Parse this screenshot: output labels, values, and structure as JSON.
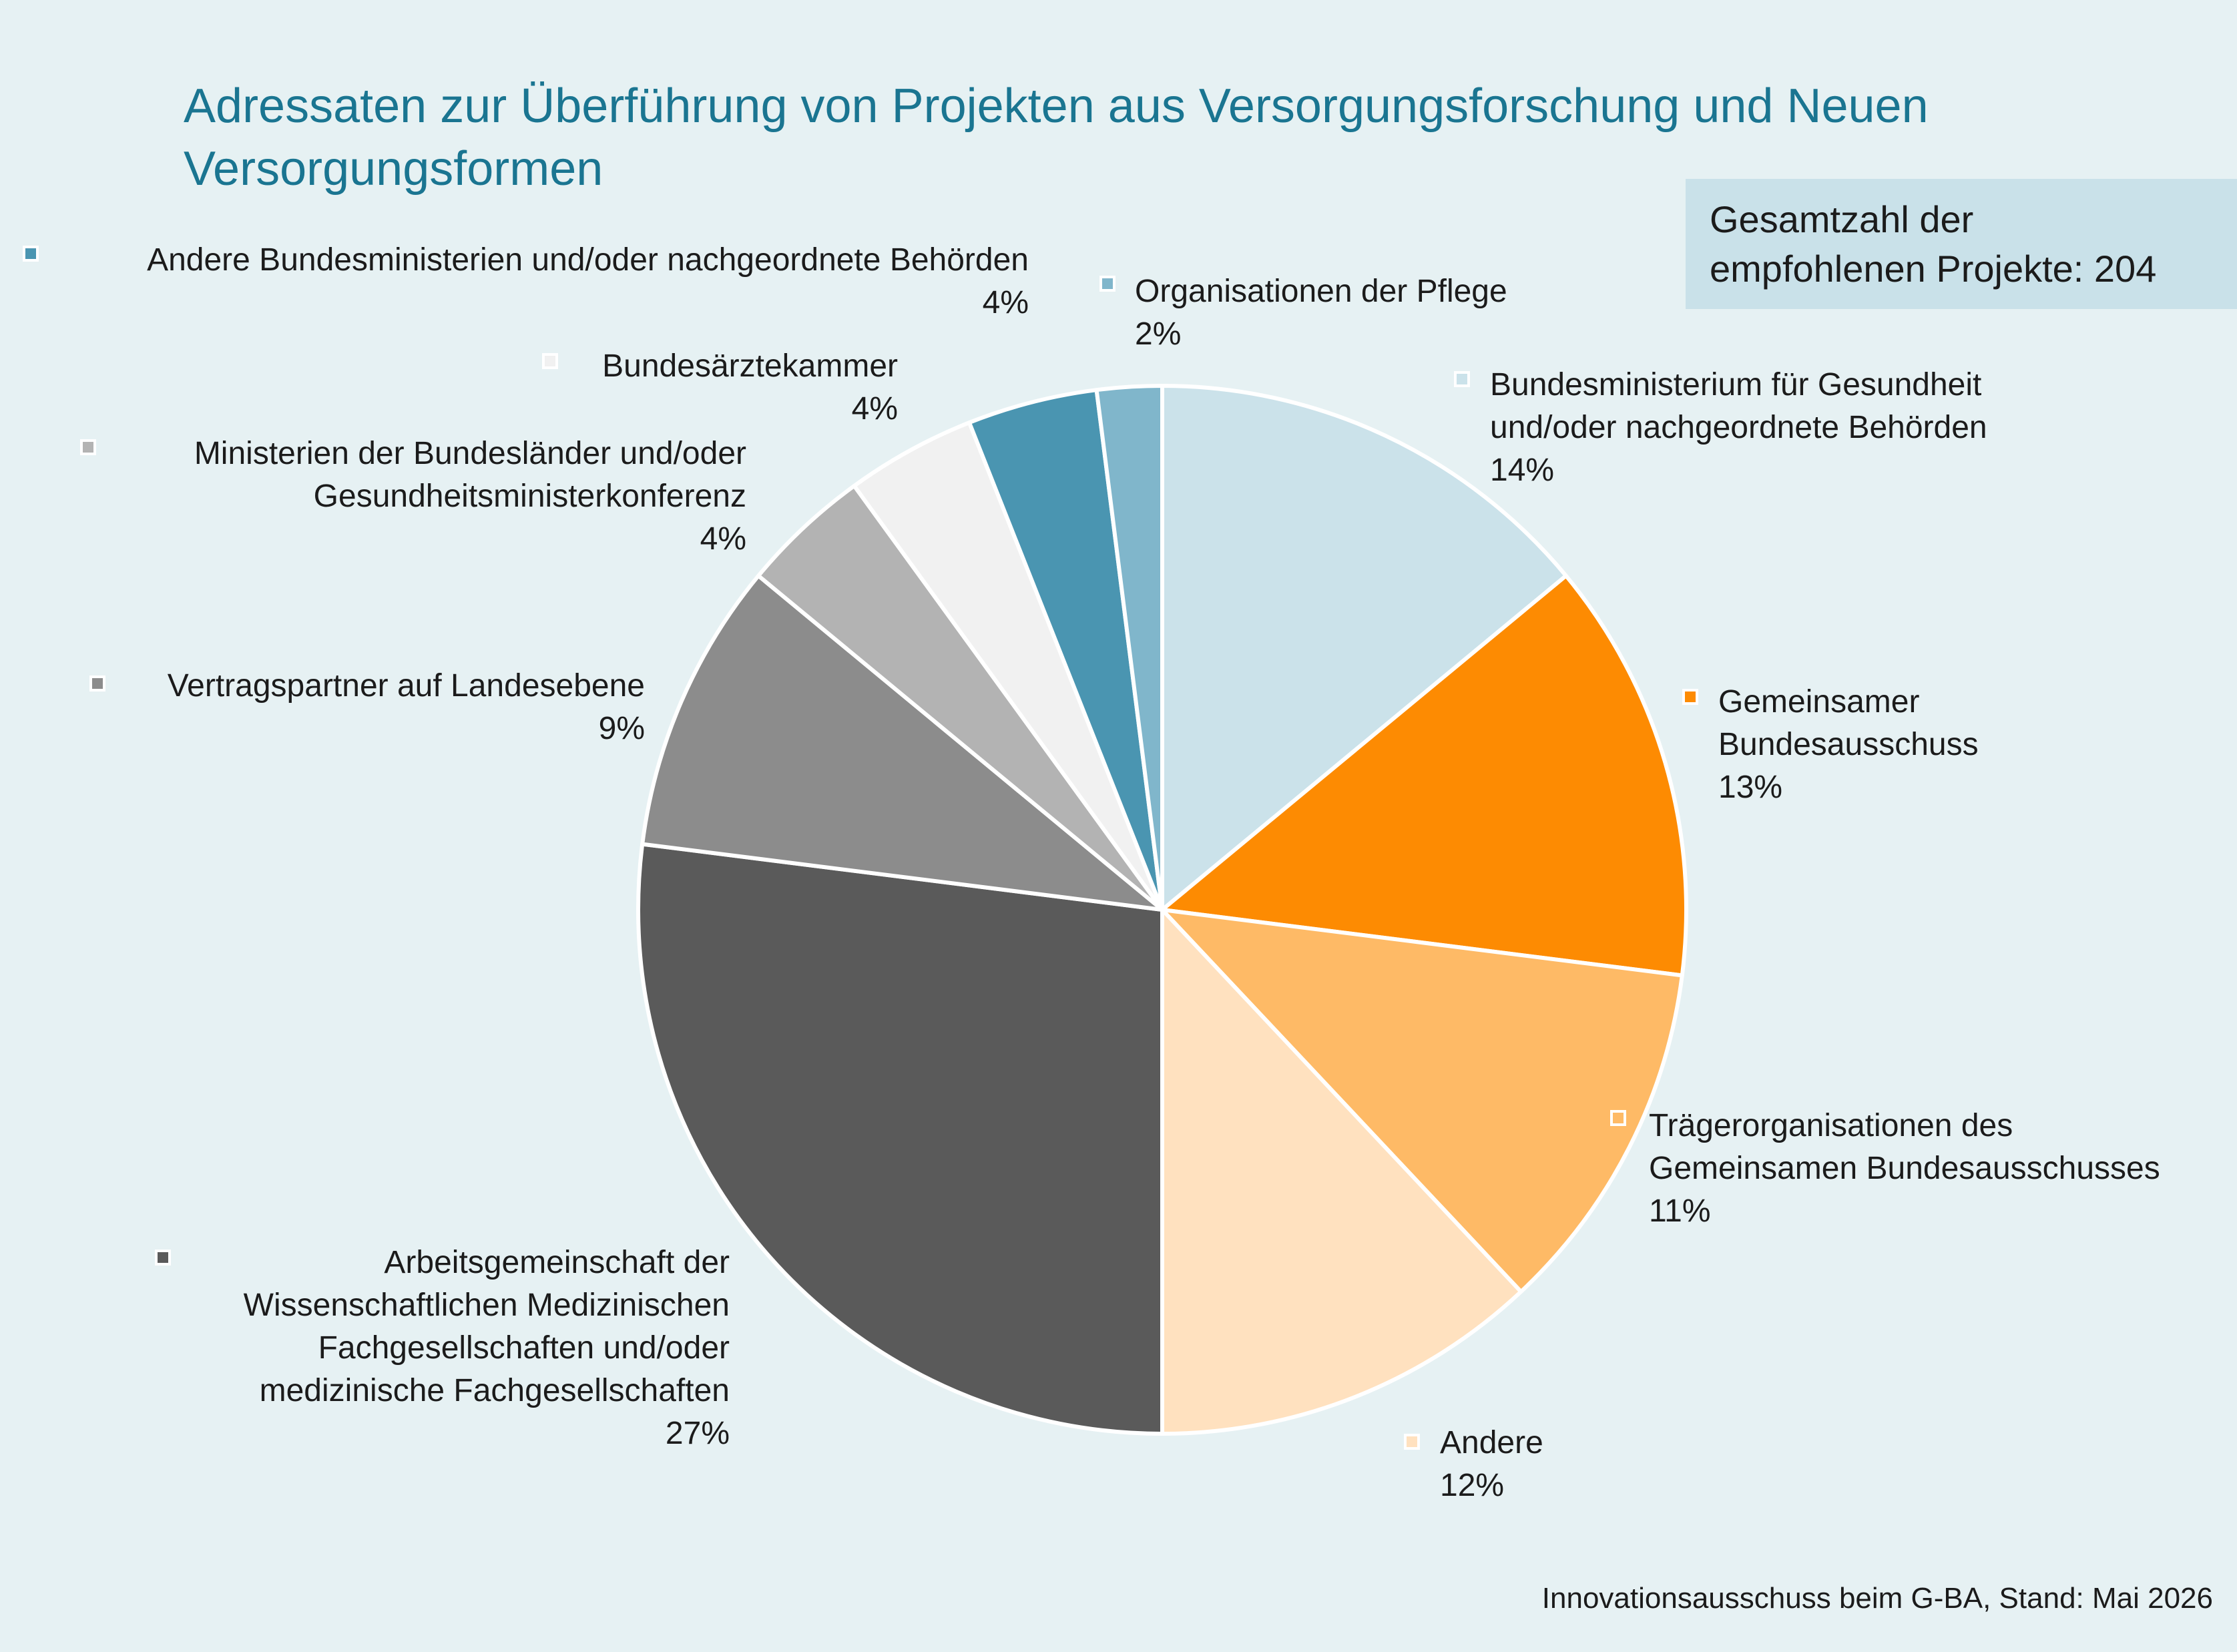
{
  "title": "Adressaten zur Überführung von Projekten aus Versorgungsforschung und Neuen Versorgungsformen",
  "total_box": {
    "line1": "Gesamtzahl der",
    "line2": "empfohlenen Projekte: 204"
  },
  "source": "Innovationsausschuss beim G-BA, Stand: Mai 2026",
  "chart_data": {
    "type": "pie",
    "title": "Adressaten zur Überführung von Projekten aus Versorgungsforschung und Neuen Versorgungsformen",
    "total_label": "Gesamtzahl der empfohlenen Projekte: 204",
    "start_angle": "12 o'clock",
    "direction": "clockwise",
    "slices": [
      {
        "name": "Bundesministerium für Gesundheit und/oder nachgeordnete Behörden",
        "label_lines": [
          "Bundesministerium für Gesundheit",
          "und/oder nachgeordnete Behörden"
        ],
        "value": 14,
        "percent_label": "14%",
        "color": "#cbe2ea"
      },
      {
        "name": "Gemeinsamer Bundesausschuss",
        "label_lines": [
          "Gemeinsamer",
          "Bundesausschuss"
        ],
        "value": 13,
        "percent_label": "13%",
        "color": "#fd8b02"
      },
      {
        "name": "Trägerorganisationen des Gemeinsamen Bundesausschusses",
        "label_lines": [
          "Trägerorganisationen des",
          "Gemeinsamen Bundesausschusses"
        ],
        "value": 11,
        "percent_label": "11%",
        "color": "#feba66"
      },
      {
        "name": "Andere",
        "label_lines": [
          "Andere"
        ],
        "value": 12,
        "percent_label": "12%",
        "color": "#ffe1bf"
      },
      {
        "name": "Arbeitsgemeinschaft der Wissenschaftlichen Medizinischen Fachgesellschaften und/oder medizinische Fachgesellschaften",
        "label_lines": [
          "Arbeitsgemeinschaft der",
          "Wissenschaftlichen Medizinischen",
          "Fachgesellschaften und/oder",
          "medizinische Fachgesellschaften"
        ],
        "value": 27,
        "percent_label": "27%",
        "color": "#5a5a5a"
      },
      {
        "name": "Vertragspartner auf Landesebene",
        "label_lines": [
          "Vertragspartner auf Landesebene"
        ],
        "value": 9,
        "percent_label": "9%",
        "color": "#8c8c8c"
      },
      {
        "name": "Ministerien der Bundesländer und/oder Gesundheitsministerkonferenz",
        "label_lines": [
          "Ministerien der Bundesländer und/oder",
          "Gesundheitsministerkonferenz"
        ],
        "value": 4,
        "percent_label": "4%",
        "color": "#b3b3b3"
      },
      {
        "name": "Bundesärztekammer",
        "label_lines": [
          "Bundesärztekammer"
        ],
        "value": 4,
        "percent_label": "4%",
        "color": "#f1f1f1"
      },
      {
        "name": "Andere Bundesministerien und/oder nachgeordnete Behörden",
        "label_lines": [
          "Andere Bundesministerien und/oder nachgeordnete Behörden"
        ],
        "value": 4,
        "percent_label": "4%",
        "color": "#4a95b1"
      },
      {
        "name": "Organisationen der Pflege",
        "label_lines": [
          "Organisationen der Pflege"
        ],
        "value": 2,
        "percent_label": "2%",
        "color": "#80b6cb"
      }
    ]
  }
}
